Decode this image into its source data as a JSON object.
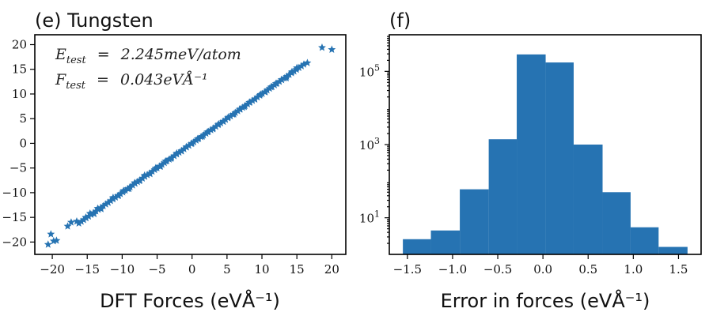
{
  "colors": {
    "series": "#2673b2",
    "axis": "#000000",
    "text": "#111111"
  },
  "chart_data": [
    {
      "type": "scatter",
      "panel_label": "(e) Tungsten",
      "xlabel": "DFT Forces (eVÅ⁻¹)",
      "ylabel": "",
      "xlim": [
        -22.5,
        22
      ],
      "ylim": [
        -22.5,
        22
      ],
      "xticks": [
        -20,
        -15,
        -10,
        -5,
        0,
        5,
        10,
        15,
        20
      ],
      "yticks": [
        -20,
        -15,
        -10,
        -5,
        0,
        5,
        10,
        15,
        20
      ],
      "xtick_labels": [
        "−20",
        "−15",
        "−10",
        "−5",
        "0",
        "5",
        "10",
        "15",
        "20"
      ],
      "ytick_labels": [
        "−20",
        "−15",
        "−10",
        "−5",
        "0",
        "5",
        "10",
        "15",
        "20"
      ],
      "marker": "star",
      "annotations": [
        {
          "lhs": "E",
          "sub": "test",
          "rhs": "2.245meV/atom"
        },
        {
          "lhs": "F",
          "sub": "test",
          "rhs": "0.043eVÅ⁻¹"
        }
      ],
      "points": [
        [
          -20.6,
          -20.5
        ],
        [
          -20.2,
          -18.4
        ],
        [
          -19.8,
          -19.8
        ],
        [
          -19.4,
          -19.7
        ],
        [
          -17.8,
          -16.8
        ],
        [
          -17.3,
          -16.0
        ],
        [
          -16.5,
          -15.8
        ],
        [
          -15.2,
          -15.0
        ],
        [
          -14.6,
          -14.2
        ],
        [
          -14.0,
          -14.3
        ],
        [
          -13.5,
          -13.2
        ],
        [
          -13.0,
          -13.3
        ],
        [
          -12.0,
          -12.0
        ],
        [
          -11.3,
          -11.0
        ],
        [
          -10.5,
          -10.6
        ],
        [
          -9.8,
          -9.6
        ],
        [
          -9.0,
          -9.2
        ],
        [
          -8.2,
          -8.0
        ],
        [
          -7.5,
          -7.6
        ],
        [
          -6.8,
          -6.5
        ],
        [
          -6.0,
          -6.2
        ],
        [
          -5.2,
          -5.0
        ],
        [
          -4.5,
          -4.7
        ],
        [
          -3.8,
          -3.6
        ],
        [
          -3.0,
          -3.1
        ],
        [
          -2.2,
          -2.0
        ],
        [
          -1.5,
          -1.6
        ],
        [
          -0.8,
          -0.7
        ],
        [
          0.0,
          0.0
        ],
        [
          0.8,
          0.9
        ],
        [
          1.5,
          1.4
        ],
        [
          2.2,
          2.3
        ],
        [
          3.0,
          2.9
        ],
        [
          3.8,
          3.9
        ],
        [
          4.5,
          4.4
        ],
        [
          5.2,
          5.3
        ],
        [
          6.0,
          5.9
        ],
        [
          6.8,
          6.9
        ],
        [
          7.5,
          7.4
        ],
        [
          8.2,
          8.3
        ],
        [
          9.0,
          8.9
        ],
        [
          9.8,
          9.9
        ],
        [
          10.5,
          10.4
        ],
        [
          11.3,
          11.4
        ],
        [
          12.0,
          12.1
        ],
        [
          12.8,
          12.9
        ],
        [
          13.5,
          13.2
        ],
        [
          14.3,
          14.5
        ],
        [
          15.0,
          15.3
        ],
        [
          16.5,
          16.3
        ],
        [
          18.6,
          19.4
        ],
        [
          20.0,
          19.0
        ]
      ]
    },
    {
      "type": "bar",
      "panel_label": "(f)",
      "xlabel": "Error in forces (eVÅ⁻¹)",
      "ylabel": "",
      "yscale": "log",
      "xlim": [
        -1.7,
        1.75
      ],
      "ylim": [
        1,
        1000000
      ],
      "xticks": [
        -1.5,
        -1.0,
        -0.5,
        0.0,
        0.5,
        1.0,
        1.5
      ],
      "xtick_labels": [
        "−1.5",
        "−1.0",
        "−0.5",
        "0.0",
        "0.5",
        "1.0",
        "1.5"
      ],
      "yticks": [
        10,
        1000,
        100000
      ],
      "ytick_labels": [
        {
          "base": "10",
          "exp": "1"
        },
        {
          "base": "10",
          "exp": "3"
        },
        {
          "base": "10",
          "exp": "5"
        }
      ],
      "bin_edges": [
        -1.55,
        -1.24,
        -0.92,
        -0.6,
        -0.29,
        0.03,
        0.34,
        0.66,
        0.97,
        1.28,
        1.6
      ],
      "counts": [
        2.6,
        4.5,
        60,
        1400,
        290000,
        175000,
        1000,
        50,
        5.5,
        1.6
      ]
    }
  ]
}
